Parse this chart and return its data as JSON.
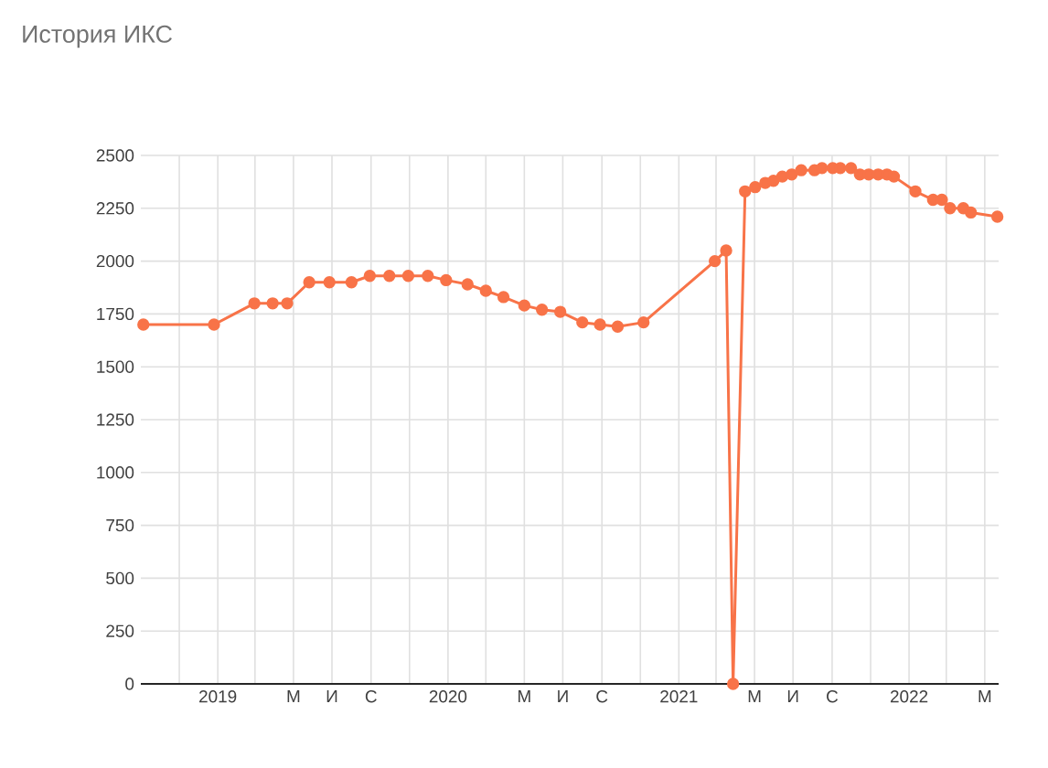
{
  "chart_data": {
    "type": "line",
    "title": "История ИКС",
    "x": [
      "2018-09-05",
      "2018-12-26",
      "2019-02-28",
      "2019-03-29",
      "2019-04-21",
      "2019-05-26",
      "2019-06-27",
      "2019-08-01",
      "2019-08-30",
      "2019-09-30",
      "2019-10-30",
      "2019-11-30",
      "2019-12-29",
      "2020-02-01",
      "2020-03-01",
      "2020-03-29",
      "2020-05-01",
      "2020-05-29",
      "2020-06-27",
      "2020-08-01",
      "2020-08-29",
      "2020-09-26",
      "2020-11-06",
      "2021-02-27",
      "2021-03-17",
      "2021-03-28",
      "2021-04-16",
      "2021-05-02",
      "2021-05-18",
      "2021-05-31",
      "2021-06-14",
      "2021-06-29",
      "2021-07-14",
      "2021-08-04",
      "2021-08-16",
      "2021-09-02",
      "2021-09-14",
      "2021-10-01",
      "2021-10-15",
      "2021-10-29",
      "2021-11-13",
      "2021-11-27",
      "2021-12-08",
      "2022-01-11",
      "2022-02-08",
      "2022-02-22",
      "2022-03-07",
      "2022-03-28",
      "2022-04-09",
      "2022-05-21"
    ],
    "values": [
      1700,
      1700,
      1800,
      1800,
      1800,
      1900,
      1900,
      1900,
      1930,
      1930,
      1930,
      1930,
      1910,
      1890,
      1860,
      1830,
      1790,
      1770,
      1760,
      1710,
      1700,
      1690,
      1710,
      2000,
      2050,
      0,
      2330,
      2350,
      2370,
      2380,
      2400,
      2410,
      2430,
      2430,
      2440,
      2440,
      2440,
      2440,
      2410,
      2410,
      2410,
      2410,
      2400,
      2330,
      2290,
      2290,
      2250,
      2250,
      2230,
      2210
    ],
    "color": "#f87348",
    "marker": "circle",
    "line_style": "solid",
    "grid": true,
    "xlim": [
      "2018-09-01",
      "2022-05-23"
    ],
    "xticks": [
      {
        "value": "2018-11-01",
        "label": null
      },
      {
        "value": "2019-01-01",
        "label": "2019"
      },
      {
        "value": "2019-03-01",
        "label": null
      },
      {
        "value": "2019-05-01",
        "label": "М"
      },
      {
        "value": "2019-07-01",
        "label": "И"
      },
      {
        "value": "2019-09-01",
        "label": "С"
      },
      {
        "value": "2019-11-01",
        "label": null
      },
      {
        "value": "2020-01-01",
        "label": "2020"
      },
      {
        "value": "2020-03-01",
        "label": null
      },
      {
        "value": "2020-05-01",
        "label": "М"
      },
      {
        "value": "2020-07-01",
        "label": "И"
      },
      {
        "value": "2020-09-01",
        "label": "С"
      },
      {
        "value": "2020-11-01",
        "label": null
      },
      {
        "value": "2021-01-01",
        "label": "2021"
      },
      {
        "value": "2021-03-01",
        "label": null
      },
      {
        "value": "2021-05-01",
        "label": "М"
      },
      {
        "value": "2021-07-01",
        "label": "И"
      },
      {
        "value": "2021-09-01",
        "label": "С"
      },
      {
        "value": "2021-11-01",
        "label": null
      },
      {
        "value": "2022-01-01",
        "label": "2022"
      },
      {
        "value": "2022-03-01",
        "label": null
      },
      {
        "value": "2022-05-01",
        "label": "М"
      }
    ],
    "ylim": [
      0,
      2500
    ],
    "yticks": [
      0,
      250,
      500,
      750,
      1000,
      1250,
      1500,
      1750,
      2000,
      2250,
      2500
    ]
  }
}
